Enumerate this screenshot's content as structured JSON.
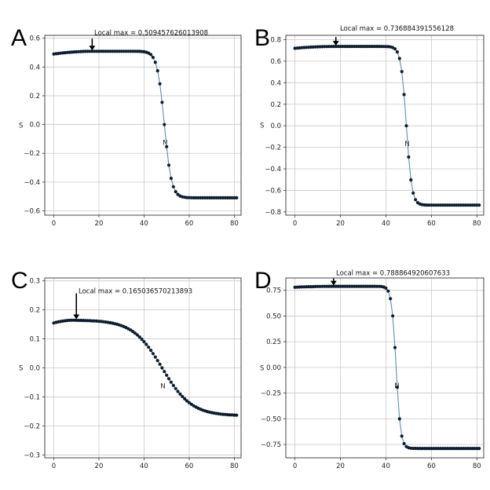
{
  "chart_data": [
    {
      "panel": "A",
      "type": "line",
      "ylabel": "S",
      "xlabel": "N",
      "xlim": [
        -4,
        83
      ],
      "ylim": [
        -0.63,
        0.62
      ],
      "xticks": [
        0,
        20,
        40,
        60,
        80
      ],
      "xtick_labels": [
        "0",
        "20",
        "40",
        "60",
        "80"
      ],
      "yticks": [
        0.6,
        0.4,
        0.2,
        0.0,
        -0.2,
        -0.4,
        -0.6
      ],
      "ytick_labels": [
        "0.6",
        "0.4",
        "0.2",
        "0.0",
        "−0.2",
        "−0.4",
        "−0.6"
      ],
      "grid": true,
      "points": 82,
      "amplitude": 0.509457626013908,
      "start": 0.49,
      "peak_x": 18,
      "midpoint": 49,
      "width": 3.2,
      "annotation": {
        "text": "Local max = 0.509457626013908",
        "x": 17,
        "y": 0.509457626013908
      }
    },
    {
      "panel": "B",
      "type": "line",
      "ylabel": "S",
      "xlabel": "N",
      "xlim": [
        -4,
        83
      ],
      "ylim": [
        -0.83,
        0.84
      ],
      "xticks": [
        0,
        20,
        40,
        60,
        80
      ],
      "xtick_labels": [
        "0",
        "20",
        "40",
        "60",
        "80"
      ],
      "yticks": [
        0.8,
        0.6,
        0.4,
        0.2,
        0.0,
        -0.2,
        -0.4,
        -0.6,
        -0.8
      ],
      "ytick_labels": [
        "0.8",
        "0.6",
        "0.4",
        "0.2",
        "0.0",
        "−0.2",
        "−0.4",
        "−0.6",
        "−0.8"
      ],
      "grid": true,
      "points": 82,
      "amplitude": 0.736884391556128,
      "start": 0.72,
      "peak_x": 18,
      "midpoint": 49,
      "width": 2.4,
      "annotation": {
        "text": "Local max = 0.736884391556128",
        "x": 18,
        "y": 0.736884391556128
      }
    },
    {
      "panel": "C",
      "type": "line",
      "ylabel": "S",
      "xlabel": "N",
      "xlim": [
        -4,
        83
      ],
      "ylim": [
        -0.31,
        0.31
      ],
      "xticks": [
        0,
        20,
        40,
        60,
        80
      ],
      "xtick_labels": [
        "0",
        "20",
        "40",
        "60",
        "80"
      ],
      "yticks": [
        0.3,
        0.2,
        0.1,
        0.0,
        -0.1,
        -0.2,
        -0.3
      ],
      "ytick_labels": [
        "0.3",
        "0.2",
        "0.1",
        "0.0",
        "−0.1",
        "−0.2",
        "−0.3"
      ],
      "grid": true,
      "points": 82,
      "amplitude": 0.165036570213893,
      "start": 0.155,
      "peak_x": 10,
      "midpoint": 48,
      "width": 13,
      "annotation": {
        "text": "Local max = 0.165036570213893",
        "x": 10,
        "y": 0.165036570213893
      }
    },
    {
      "panel": "D",
      "type": "line",
      "ylabel": "S",
      "xlabel": "N",
      "xlim": [
        -4,
        83
      ],
      "ylim": [
        -0.88,
        0.87
      ],
      "xticks": [
        0,
        20,
        40,
        60,
        80
      ],
      "xtick_labels": [
        "0",
        "20",
        "40",
        "60",
        "80"
      ],
      "yticks": [
        0.75,
        0.5,
        0.25,
        0.0,
        -0.25,
        -0.5,
        -0.75
      ],
      "ytick_labels": [
        "0.75",
        "0.50",
        "0.25",
        "0.00",
        "−0.25",
        "−0.50",
        "−0.75"
      ],
      "grid": true,
      "points": 82,
      "amplitude": 0.788864920607633,
      "start": 0.78,
      "peak_x": 18,
      "midpoint": 44.5,
      "width": 2.0,
      "annotation": {
        "text": "Local max = 0.788864920607633",
        "x": 17,
        "y": 0.788864920607633
      }
    }
  ]
}
